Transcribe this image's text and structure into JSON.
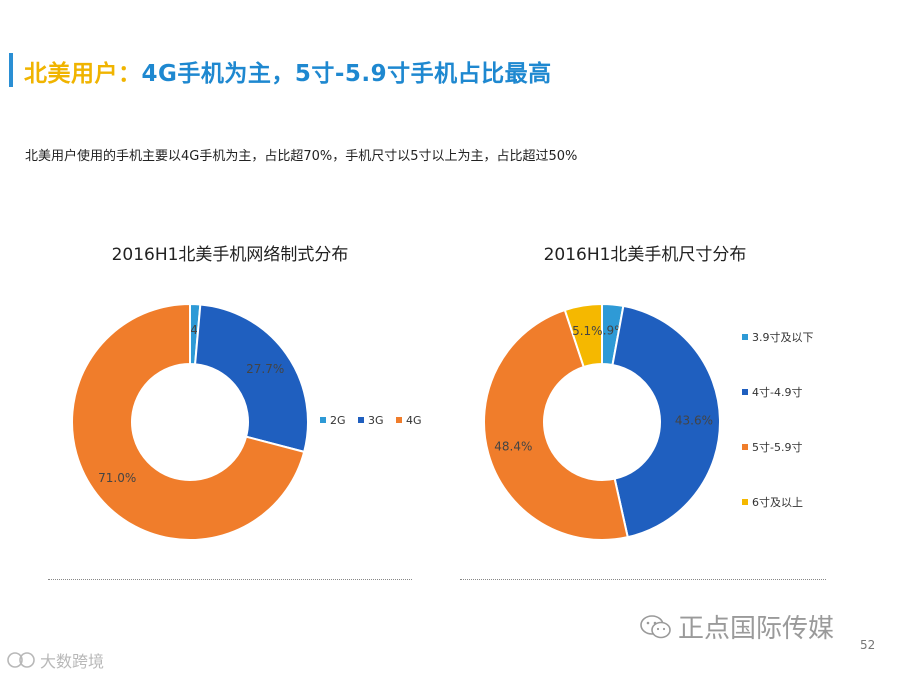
{
  "header": {
    "title_highlight": "北美用户：",
    "title_rest": "4G手机为主，5寸-5.9寸手机占比最高",
    "subtitle": "北美用户使用的手机主要以4G手机为主，占比超70%，手机尺寸以5寸以上为主，占比超过50%"
  },
  "chart_data": [
    {
      "type": "pie",
      "donut": true,
      "title": "2016H1北美手机网络制式分布",
      "categories": [
        "2G",
        "3G",
        "4G"
      ],
      "values": [
        1.4,
        27.7,
        71.0
      ],
      "labels": [
        "1.4%",
        "27.7%",
        "71.0%"
      ],
      "colors": [
        "#2e9ad6",
        "#1f5fbf",
        "#f07d2b"
      ],
      "legend": "right"
    },
    {
      "type": "pie",
      "donut": true,
      "title": "2016H1北美手机尺寸分布",
      "categories": [
        "3.9寸及以下",
        "4寸-4.9寸",
        "5寸-5.9寸",
        "6寸及以上"
      ],
      "values": [
        2.9,
        43.6,
        48.4,
        5.1
      ],
      "labels": [
        "2.9%",
        "43.6%",
        "48.4%",
        "5.1%"
      ],
      "colors": [
        "#2e9ad6",
        "#1f5fbf",
        "#f07d2b",
        "#f5b800"
      ],
      "legend": "right"
    }
  ],
  "footer": {
    "watermark": "正点国际传媒",
    "page_number": "52",
    "corner_logo": "大数跨境"
  }
}
